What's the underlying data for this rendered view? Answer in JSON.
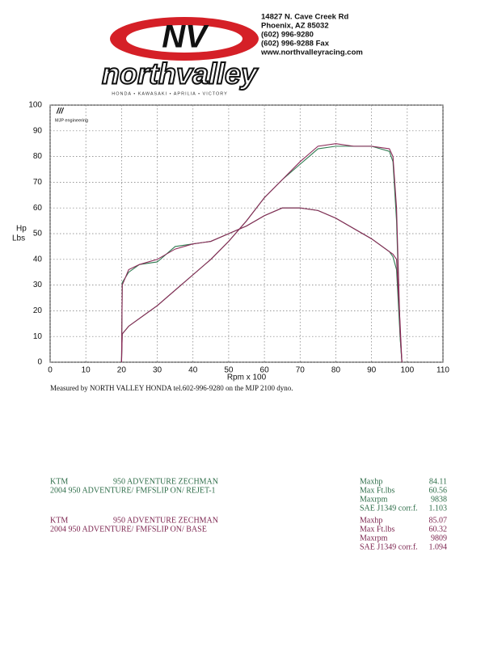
{
  "header": {
    "logo_mark": "NV",
    "logo_name": "northvalley",
    "brands": "HONDA • KAWASAKI • APRILIA • VICTORY",
    "address": [
      "14827 N. Cave Creek Rd",
      "Phoenix, AZ 85032",
      "(602) 996-9280",
      "(602) 996-9288 Fax",
      "www.northvalleyracing.com"
    ]
  },
  "chart_data": {
    "type": "line",
    "annotation": "MJP engineering",
    "xlabel": "Rpm x 100",
    "ylabel": [
      "Hp",
      "Lbs"
    ],
    "x": [
      20,
      20.2,
      22,
      25,
      30,
      35,
      40,
      45,
      50,
      55,
      60,
      65,
      70,
      75,
      80,
      85,
      90,
      95,
      96,
      97,
      98,
      98.5
    ],
    "series": [
      {
        "color": "#2f7a50",
        "values": [
          0,
          31,
          35,
          38,
          39,
          45,
          46,
          47,
          50,
          53,
          57,
          60,
          60,
          59,
          56,
          52,
          48,
          43,
          41,
          36,
          10,
          0
        ]
      },
      {
        "color": "#2f7a50",
        "values": [
          0,
          11,
          14,
          17,
          22,
          28,
          34,
          40,
          47,
          55,
          64,
          71,
          77,
          83,
          84,
          84,
          84,
          82,
          78,
          55,
          10,
          0
        ]
      },
      {
        "color": "#8b2a58",
        "values": [
          0,
          30,
          36,
          38,
          40,
          44,
          46,
          47,
          50,
          53,
          57,
          60,
          60,
          59,
          56,
          52,
          48,
          43,
          42,
          40,
          15,
          0
        ]
      },
      {
        "color": "#8b2a58",
        "values": [
          0,
          11,
          14,
          17,
          22,
          28,
          34,
          40,
          47,
          55,
          64,
          71,
          78,
          84,
          85,
          84,
          84,
          83,
          80,
          60,
          12,
          0
        ]
      }
    ],
    "xlim": [
      0,
      110
    ],
    "xticks": [
      0,
      10,
      20,
      30,
      40,
      50,
      60,
      70,
      80,
      90,
      100,
      110
    ],
    "ylim": [
      0,
      100
    ],
    "yticks": [
      0,
      10,
      20,
      30,
      40,
      50,
      60,
      70,
      80,
      90,
      100
    ],
    "grid": true
  },
  "caption": "Measured by NORTH VALLEY HONDA tel.602-996-9280 on the MJP 2100 dyno.",
  "runs": [
    {
      "make": "KTM",
      "model": "950 ADVENTURE  ZECHMAN",
      "description": "2004 950 ADVENTURE/ FMFSLIP ON/ REJET-1",
      "stats": [
        [
          "Maxhp",
          "84.11"
        ],
        [
          "Max Ft.lbs",
          "60.56"
        ],
        [
          "Maxrpm",
          "9838"
        ],
        [
          "SAE J1349 corr.f.",
          "1.103"
        ]
      ]
    },
    {
      "make": "KTM",
      "model": "950 ADVENTURE  ZECHMAN",
      "description": "2004 950 ADVENTURE/ FMFSLIP ON/ BASE",
      "stats": [
        [
          "Maxhp",
          "85.07"
        ],
        [
          "Max Ft.lbs",
          "60.32"
        ],
        [
          "Maxrpm",
          "9809"
        ],
        [
          "SAE J1349 corr.f.",
          "1.094"
        ]
      ]
    }
  ]
}
